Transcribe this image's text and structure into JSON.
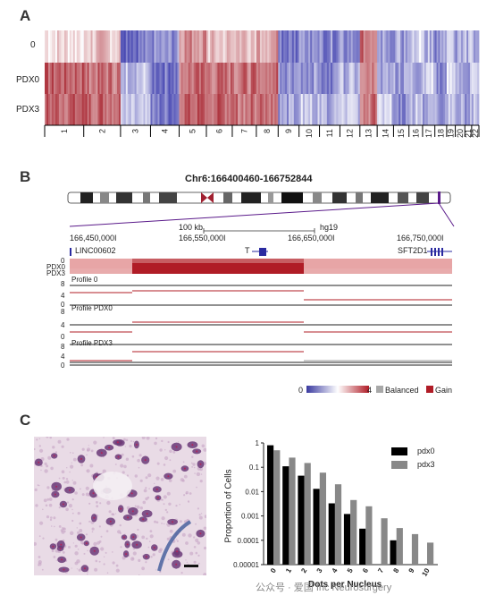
{
  "panels": {
    "a": "A",
    "b": "B",
    "c": "C"
  },
  "panel_a": {
    "row_labels": [
      "0",
      "PDX0",
      "PDX3"
    ],
    "chromosomes": [
      "1",
      "2",
      "3",
      "4",
      "5",
      "6",
      "7",
      "8",
      "9",
      "10",
      "11",
      "12",
      "13",
      "14",
      "15",
      "16",
      "17",
      "18",
      "19",
      "20",
      "21",
      "22"
    ]
  },
  "panel_b": {
    "region_title": "Chr6:166400460-166752844",
    "scale_label": "100 kb",
    "genome_label": "hg19",
    "positions": [
      "166,450,000I",
      "166,550,000I",
      "166,650,000I",
      "166,750,000I"
    ],
    "genes": [
      "LINC00602",
      "T",
      "SFT2D1"
    ],
    "track_labels": [
      "0",
      "PDX0",
      "PDX3"
    ],
    "profiles": [
      "Profile 0",
      "Profile PDX0",
      "Profile PDX3"
    ],
    "profile_ticks": [
      "8",
      "4",
      "0"
    ],
    "legend": {
      "min": "0",
      "max": "4",
      "balanced": "Balanced",
      "gain": "Gain",
      "colors": {
        "low": "#3a3aa0",
        "mid": "#ffffff",
        "high": "#b01c26",
        "balanced": "#a8a8a8",
        "gain": "#b01c26"
      }
    }
  },
  "panel_c": {
    "scale_bar": "",
    "chart_data": {
      "type": "bar",
      "categories": [
        "0",
        "1",
        "2",
        "3",
        "4",
        "5",
        "6",
        "7",
        "8",
        "9",
        "10"
      ],
      "series": [
        {
          "name": "pdx0",
          "values": [
            0.8,
            0.11,
            0.045,
            0.013,
            0.0033,
            0.0012,
            0.0003,
            null,
            0.0001,
            null,
            null
          ],
          "color": "#000000"
        },
        {
          "name": "pdx3",
          "values": [
            0.5,
            0.25,
            0.15,
            0.06,
            0.02,
            0.0045,
            0.0025,
            0.0008,
            0.00032,
            0.00018,
            8e-05
          ],
          "color": "#888888"
        }
      ],
      "ylabel": "Proportion of Cells",
      "xlabel": "Dots per Nucleus",
      "yscale": "log",
      "ylim": [
        1e-05,
        1
      ],
      "yticks": [
        "1",
        "0.1",
        "0.01",
        "0.001",
        "0.0001",
        "0.00001"
      ],
      "legend_position": "top-right"
    }
  },
  "watermark": "公众号 · 爱国 Inc Neurosurgery"
}
